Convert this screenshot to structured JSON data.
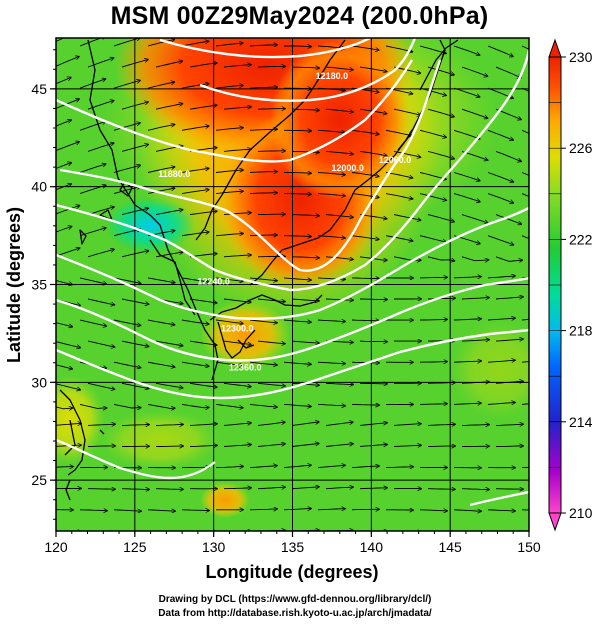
{
  "title": "MSM 00Z29May2024 (200.0hPa)",
  "x_axis": {
    "label": "Longitude (degrees)",
    "range": [
      120,
      150
    ],
    "ticks": [
      "120",
      "125",
      "130",
      "135",
      "140",
      "145",
      "150"
    ]
  },
  "y_axis": {
    "label": "Latitude  (degrees)",
    "range": [
      22.4,
      47.6
    ],
    "ticks": [
      "25",
      "30",
      "35",
      "40",
      "45"
    ]
  },
  "colorbar": {
    "range": [
      210,
      230
    ],
    "ticks": [
      "210",
      "214",
      "218",
      "222",
      "226",
      "230"
    ],
    "palette": [
      "#ff44cc",
      "#9900cc",
      "#2222cc",
      "#0077ff",
      "#00ccee",
      "#00dd88",
      "#33cc33",
      "#88dd22",
      "#dddd00",
      "#ffaa00",
      "#ff6600",
      "#ee2200"
    ]
  },
  "contour_labels": [
    {
      "text": "12180.0",
      "lon": 137.5,
      "lat": 45.5
    },
    {
      "text": "12000.0",
      "lon": 138.5,
      "lat": 40.8
    },
    {
      "text": "12060.0",
      "lon": 141.5,
      "lat": 41.2
    },
    {
      "text": "11880.0",
      "lon": 127.5,
      "lat": 40.5
    },
    {
      "text": "12240.0",
      "lon": 130.0,
      "lat": 35.0
    },
    {
      "text": "12300.0",
      "lon": 131.5,
      "lat": 32.6
    },
    {
      "text": "12360.0",
      "lon": 132.0,
      "lat": 30.6
    }
  ],
  "credits": {
    "line1": "Drawing by DCL (https://www.gfd-dennou.org/library/dcl/)",
    "line2": "Data from http://database.rish.kyoto-u.ac.jp/arch/jmadata/"
  }
}
